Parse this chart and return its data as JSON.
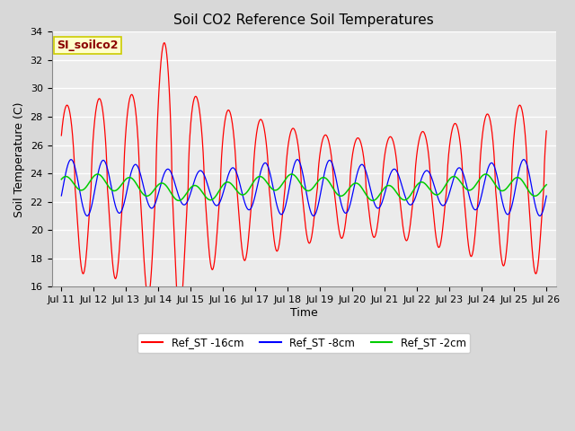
{
  "title": "Soil CO2 Reference Soil Temperatures",
  "xlabel": "Time",
  "ylabel": "Soil Temperature (C)",
  "ylim": [
    16,
    34
  ],
  "x_tick_labels": [
    "Jul 11",
    "Jul 12",
    "Jul 13",
    "Jul 14",
    "Jul 15",
    "Jul 16",
    "Jul 17",
    "Jul 18",
    "Jul 19",
    "Jul 20",
    "Jul 21",
    "Jul 22",
    "Jul 23",
    "Jul 24",
    "Jul 25",
    "Jul 26"
  ],
  "annotation_text": "SI_soilco2",
  "annotation_color": "#8B0000",
  "annotation_bg": "#FFFFCC",
  "annotation_border": "#CCCC00",
  "line_colors": {
    "red": "#FF0000",
    "blue": "#0000FF",
    "green": "#00CC00"
  },
  "legend_labels": [
    "Ref_ST -16cm",
    "Ref_ST -8cm",
    "Ref_ST -2cm"
  ],
  "title_fontsize": 11,
  "axis_label_fontsize": 9,
  "tick_fontsize": 8,
  "background_color": "#D8D8D8",
  "plot_bg_color": "#EBEBEB",
  "grid_color": "#FFFFFF",
  "grid_linewidth": 1.0,
  "yticks": [
    16,
    18,
    20,
    22,
    24,
    26,
    28,
    30,
    32,
    34
  ]
}
